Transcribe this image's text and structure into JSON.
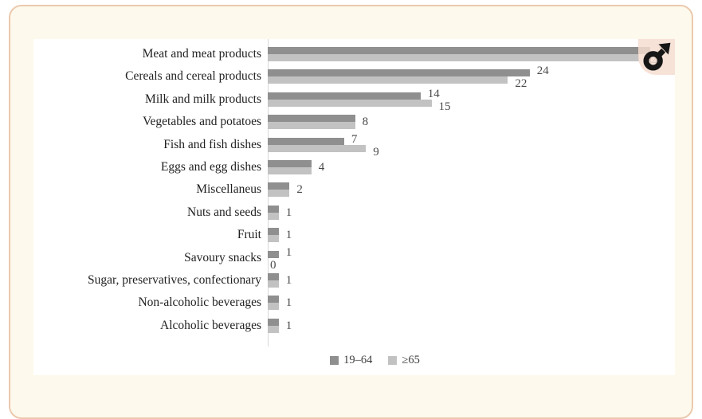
{
  "chart_data": {
    "type": "bar",
    "orientation": "horizontal",
    "title": "",
    "xlabel": "",
    "ylabel": "",
    "xlim": [
      0,
      37
    ],
    "grid": false,
    "legend_position": "bottom-center",
    "categories": [
      "Meat and meat products",
      "Cereals and cereal products",
      "Milk and milk products",
      "Vegetables and potatoes",
      "Fish and fish dishes",
      "Eggs and egg dishes",
      "Miscellaneus",
      "Nuts and seeds",
      "Fruit",
      "Savoury snacks",
      "Sugar, preservatives, confectionary",
      "Non-alcoholic beverages",
      "Alcoholic beverages"
    ],
    "series": [
      {
        "name": "19–64",
        "color": "#8f8f8f",
        "values": [
          35,
          24,
          14,
          8,
          7,
          4,
          2,
          1,
          1,
          1,
          1,
          1,
          1
        ]
      },
      {
        "name": "≥65",
        "color": "#c2c2c2",
        "values": [
          34,
          22,
          15,
          8,
          9,
          4,
          2,
          1,
          1,
          0,
          1,
          1,
          1
        ]
      }
    ],
    "value_labels": [
      {
        "mode": "both",
        "dark": "35",
        "light": "34"
      },
      {
        "mode": "both",
        "dark": "24",
        "light": "22"
      },
      {
        "mode": "both",
        "dark": "14",
        "light": "15"
      },
      {
        "mode": "single",
        "text": "8"
      },
      {
        "mode": "both",
        "dark": "7",
        "light": "9"
      },
      {
        "mode": "single",
        "text": "4"
      },
      {
        "mode": "single",
        "text": "2"
      },
      {
        "mode": "single",
        "text": "1"
      },
      {
        "mode": "single",
        "text": "1"
      },
      {
        "mode": "both",
        "dark": "1",
        "light": "0",
        "light_at_axis": true
      },
      {
        "mode": "single",
        "text": "1"
      },
      {
        "mode": "single",
        "text": "1"
      },
      {
        "mode": "single",
        "text": "1"
      }
    ]
  },
  "legend": {
    "items": [
      {
        "label": "19–64",
        "color": "#8f8f8f"
      },
      {
        "label": "≥65",
        "color": "#c2c2c2"
      }
    ]
  },
  "overlay_icon": {
    "name": "male-symbol-icon",
    "glyph_color": "#161616",
    "background": "#f6ddd1"
  },
  "colors": {
    "card_background": "#fdf9ec",
    "card_border": "#ecc9ae",
    "panel_background": "#ffffff",
    "axis_line": "#d8d8d8",
    "category_text": "#1f1f1f",
    "value_text": "#4a4a4a"
  }
}
